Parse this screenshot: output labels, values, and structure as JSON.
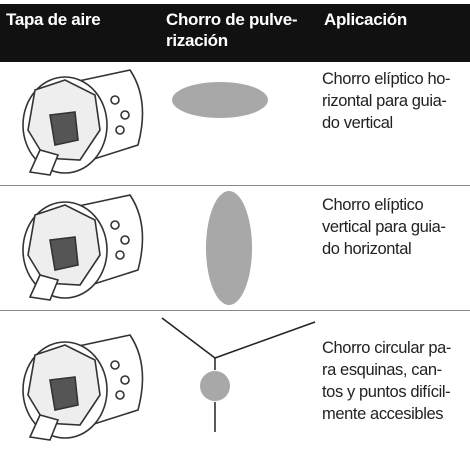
{
  "table": {
    "header": [
      [
        "Tapa de aire"
      ],
      [
        "Chorro de pulve-",
        "rización"
      ],
      [
        "Aplicación"
      ]
    ],
    "rows": [
      {
        "description": [
          "Chorro elíptico ho-",
          "rizontal para guia-",
          "do vertical"
        ]
      },
      {
        "description": [
          "Chorro elíptico",
          "vertical para guia-",
          "do horizontal"
        ]
      },
      {
        "description": [
          "Chorro circular pa-",
          "ra esquinas, can-",
          "tos y puntos difícil-",
          "mente accesibles"
        ]
      }
    ]
  }
}
